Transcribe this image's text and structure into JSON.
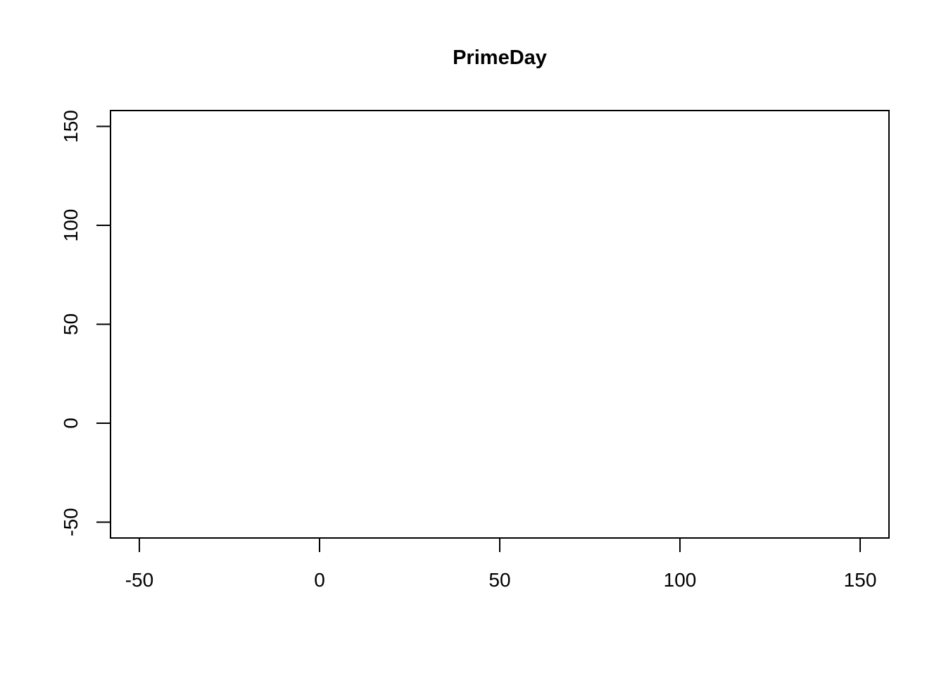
{
  "chart_data": {
    "type": "scatter",
    "title": "PrimeDay",
    "xlabel": "",
    "ylabel": "",
    "xlim": [
      -58,
      158
    ],
    "ylim": [
      -58,
      158
    ],
    "x_ticks": [
      -50,
      0,
      50,
      100,
      150
    ],
    "y_ticks": [
      -50,
      0,
      50,
      100,
      150
    ],
    "x": [],
    "y": [],
    "grid": false,
    "colors": {
      "axis": "#000000",
      "background": "#ffffff"
    }
  }
}
